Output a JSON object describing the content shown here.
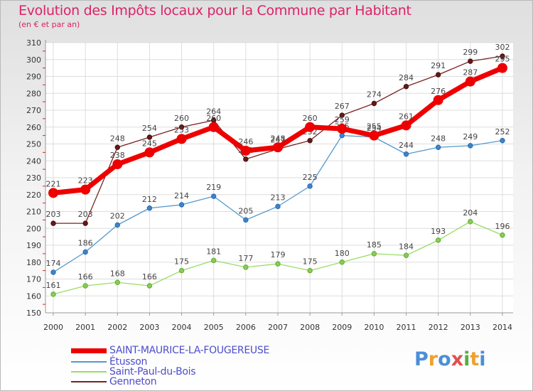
{
  "chart_data": {
    "type": "line",
    "title": "Evolution des Impôts locaux pour la Commune par Habitant",
    "subtitle": "(en € et par an)",
    "x": [
      "2000",
      "2001",
      "2002",
      "2003",
      "2004",
      "2005",
      "2006",
      "2007",
      "2008",
      "2009",
      "2010",
      "2011",
      "2012",
      "2013",
      "2014"
    ],
    "ylim": [
      150,
      310
    ],
    "yticks": [
      150,
      160,
      170,
      180,
      190,
      200,
      210,
      220,
      230,
      240,
      250,
      260,
      270,
      280,
      290,
      300,
      310
    ],
    "grid": true,
    "legend_position": "bottom-left",
    "series": [
      {
        "name": "SAINT-MAURICE-LA-FOUGEREUSE",
        "color": "#ee0000",
        "values": [
          221,
          223,
          238,
          245,
          253,
          260,
          246,
          248,
          260,
          259,
          255,
          261,
          276,
          287,
          295
        ]
      },
      {
        "name": "Étusson",
        "color": "#5599cc",
        "values": [
          174,
          186,
          202,
          212,
          214,
          219,
          205,
          213,
          225,
          255,
          254,
          244,
          248,
          249,
          252
        ]
      },
      {
        "name": "Saint-Paul-du-Bois",
        "color": "#99dd66",
        "values": [
          161,
          166,
          168,
          166,
          175,
          181,
          177,
          179,
          175,
          180,
          185,
          184,
          193,
          204,
          196
        ]
      },
      {
        "name": "Genneton",
        "color": "#772222",
        "values": [
          203,
          203,
          248,
          254,
          260,
          264,
          241,
          247,
          252,
          267,
          274,
          284,
          291,
          299,
          302
        ]
      }
    ]
  },
  "logo": {
    "text": "Proxiti",
    "letters": [
      "P",
      "r",
      "o",
      "x",
      "i",
      "t",
      "i"
    ],
    "colors": [
      "#4a8fd9",
      "#f0a030",
      "#4a8fd9",
      "#e05050",
      "#55b040",
      "#f0a030",
      "#4a8fd9"
    ]
  }
}
